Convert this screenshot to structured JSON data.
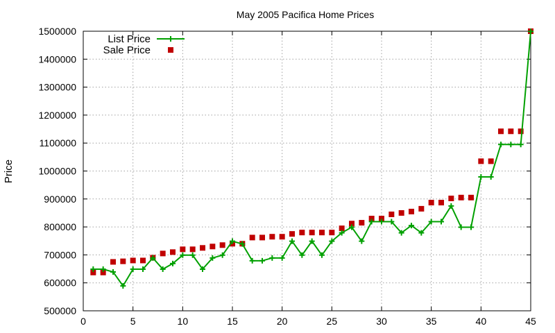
{
  "chart_data": {
    "type": "line",
    "title": "May 2005 Pacifica Home Prices",
    "xlabel": "",
    "ylabel": "Price",
    "xlim": [
      0,
      45
    ],
    "ylim": [
      500000,
      1500000
    ],
    "xticks": [
      0,
      5,
      10,
      15,
      20,
      25,
      30,
      35,
      40,
      45
    ],
    "yticks": [
      500000,
      600000,
      700000,
      800000,
      900000,
      1000000,
      1100000,
      1200000,
      1300000,
      1400000,
      1500000
    ],
    "grid": true,
    "legend_position": "top-left",
    "x": [
      1,
      2,
      3,
      4,
      5,
      6,
      7,
      8,
      9,
      10,
      11,
      12,
      13,
      14,
      15,
      16,
      17,
      18,
      19,
      20,
      21,
      22,
      23,
      24,
      25,
      26,
      27,
      28,
      29,
      30,
      31,
      32,
      33,
      34,
      35,
      36,
      37,
      38,
      39,
      40,
      41,
      42,
      43,
      44,
      45
    ],
    "series": [
      {
        "name": "List Price",
        "style": "line-plus",
        "color": "#00a000",
        "values": [
          649000,
          649000,
          639000,
          589000,
          649000,
          649000,
          689000,
          649000,
          669000,
          699000,
          699000,
          649000,
          689000,
          699000,
          749000,
          739000,
          679000,
          679000,
          689000,
          689000,
          749000,
          699000,
          749000,
          699000,
          749000,
          779000,
          799000,
          749000,
          819000,
          819000,
          819000,
          779000,
          805000,
          779000,
          819000,
          819000,
          875000,
          799000,
          799000,
          979000,
          979000,
          1095000,
          1095000,
          1095000,
          1499000
        ]
      },
      {
        "name": "Sale Price",
        "style": "square-points",
        "color": "#c00000",
        "values": [
          637000,
          637000,
          675000,
          677000,
          680000,
          680000,
          690000,
          705000,
          710000,
          720000,
          720000,
          725000,
          730000,
          735000,
          740000,
          740000,
          762000,
          762000,
          765000,
          765000,
          775000,
          780000,
          780000,
          780000,
          780000,
          795000,
          812000,
          815000,
          830000,
          830000,
          845000,
          850000,
          855000,
          865000,
          887000,
          887000,
          902000,
          905000,
          905000,
          1035000,
          1035000,
          1142000,
          1142000,
          1142000,
          1500000
        ]
      }
    ]
  }
}
